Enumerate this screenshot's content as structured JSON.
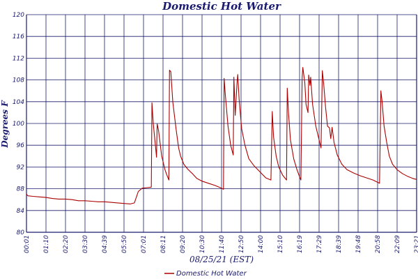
{
  "chart_data": {
    "type": "line",
    "title": "Domestic Hot Water",
    "xlabel": "08/25/21 (EST)",
    "ylabel": "Degrees F",
    "ylim": [
      80,
      120
    ],
    "yticks": [
      80,
      84,
      88,
      92,
      96,
      100,
      104,
      108,
      112,
      116,
      120
    ],
    "xticks": [
      "00:01",
      "01:10",
      "02:20",
      "03:30",
      "04:39",
      "05:50",
      "07:01",
      "08:11",
      "09:20",
      "10:30",
      "11:40",
      "12:50",
      "14:00",
      "15:10",
      "16:19",
      "17:29",
      "18:39",
      "19:48",
      "20:58",
      "22:09",
      "23:21"
    ],
    "legend": "bottom-center",
    "grid": true,
    "series": [
      {
        "name": "Domestic Hot Water",
        "color": "#aa0000",
        "points": [
          [
            0,
            87.0
          ],
          [
            2,
            86.7
          ],
          [
            10,
            86.6
          ],
          [
            20,
            86.5
          ],
          [
            30,
            86.4
          ],
          [
            40,
            86.2
          ],
          [
            50,
            86.1
          ],
          [
            60,
            86.1
          ],
          [
            70,
            86.0
          ],
          [
            80,
            85.8
          ],
          [
            90,
            85.8
          ],
          [
            100,
            85.7
          ],
          [
            110,
            85.6
          ],
          [
            120,
            85.6
          ],
          [
            130,
            85.5
          ],
          [
            140,
            85.4
          ],
          [
            150,
            85.3
          ],
          [
            160,
            85.2
          ],
          [
            166,
            85.4
          ],
          [
            172,
            87.5
          ],
          [
            178,
            88.1
          ],
          [
            186,
            88.2
          ],
          [
            192,
            88.3
          ],
          [
            193,
            103.8
          ],
          [
            195,
            100.0
          ],
          [
            200,
            93.8
          ],
          [
            201,
            99.9
          ],
          [
            203,
            98.8
          ],
          [
            208,
            94.0
          ],
          [
            213,
            91.5
          ],
          [
            216,
            90.5
          ],
          [
            219,
            89.6
          ],
          [
            220,
            109.8
          ],
          [
            222,
            109.5
          ],
          [
            225,
            104.0
          ],
          [
            230,
            99.0
          ],
          [
            234,
            95.5
          ],
          [
            237,
            94.0
          ],
          [
            242,
            92.5
          ],
          [
            248,
            91.6
          ],
          [
            255,
            90.8
          ],
          [
            262,
            89.9
          ],
          [
            270,
            89.4
          ],
          [
            280,
            89.0
          ],
          [
            290,
            88.6
          ],
          [
            298,
            88.2
          ],
          [
            303,
            87.9
          ],
          [
            304,
            108.3
          ],
          [
            306,
            105.0
          ],
          [
            310,
            99.5
          ],
          [
            314,
            96.0
          ],
          [
            318,
            94.2
          ],
          [
            319,
            108.5
          ],
          [
            321,
            101.5
          ],
          [
            324,
            107.8
          ],
          [
            325,
            109.0
          ],
          [
            327,
            104.5
          ],
          [
            331,
            99.0
          ],
          [
            336,
            96.0
          ],
          [
            342,
            93.5
          ],
          [
            350,
            92.2
          ],
          [
            360,
            91.0
          ],
          [
            368,
            90.0
          ],
          [
            376,
            89.6
          ],
          [
            378,
            102.2
          ],
          [
            380,
            97.5
          ],
          [
            384,
            94.0
          ],
          [
            388,
            92.0
          ],
          [
            394,
            90.5
          ],
          [
            400,
            89.6
          ],
          [
            401,
            106.5
          ],
          [
            403,
            102.0
          ],
          [
            406,
            97.0
          ],
          [
            411,
            93.5
          ],
          [
            416,
            91.5
          ],
          [
            420,
            90.2
          ],
          [
            422,
            89.6
          ],
          [
            424,
            108.5
          ],
          [
            425,
            110.3
          ],
          [
            428,
            107.5
          ],
          [
            430,
            103.5
          ],
          [
            433,
            102.0
          ],
          [
            434,
            108.9
          ],
          [
            436,
            107.0
          ],
          [
            437,
            108.5
          ],
          [
            440,
            103.5
          ],
          [
            445,
            99.5
          ],
          [
            450,
            97.0
          ],
          [
            453,
            95.5
          ],
          [
            455,
            109.7
          ],
          [
            457,
            107.5
          ],
          [
            460,
            103.0
          ],
          [
            463,
            99.5
          ],
          [
            466,
            99.2
          ],
          [
            468,
            97.2
          ],
          [
            470,
            99.3
          ],
          [
            473,
            96.5
          ],
          [
            478,
            94.2
          ],
          [
            485,
            92.5
          ],
          [
            493,
            91.5
          ],
          [
            503,
            90.9
          ],
          [
            513,
            90.4
          ],
          [
            523,
            90.0
          ],
          [
            533,
            89.6
          ],
          [
            543,
            89.0
          ],
          [
            545,
            106.0
          ],
          [
            547,
            104.0
          ],
          [
            550,
            99.5
          ],
          [
            554,
            96.5
          ],
          [
            558,
            94.0
          ],
          [
            563,
            92.5
          ],
          [
            570,
            91.5
          ],
          [
            578,
            90.8
          ],
          [
            586,
            90.3
          ],
          [
            594,
            89.9
          ],
          [
            600,
            89.7
          ]
        ]
      }
    ]
  }
}
